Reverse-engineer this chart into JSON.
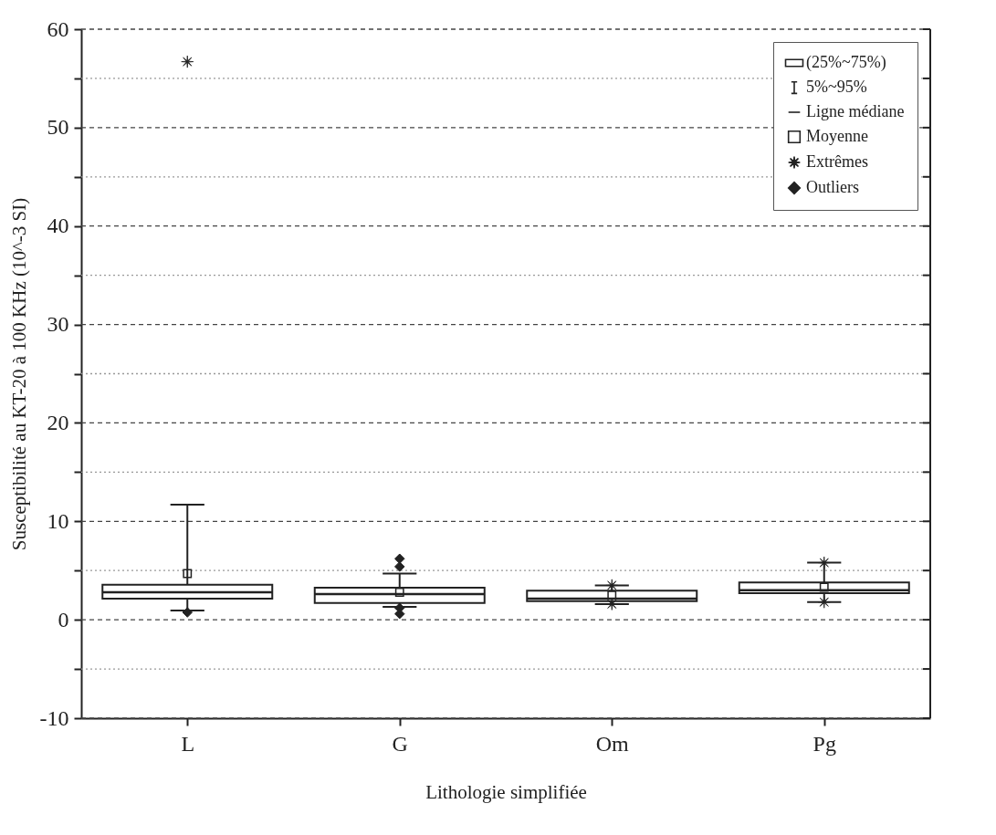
{
  "chart_data": {
    "type": "box",
    "xlabel": "Lithologie simplifiée",
    "ylabel": "Susceptibilité au KT-20 à 100 KHz (10^-3 SI)",
    "categories": [
      "L",
      "G",
      "Om",
      "Pg"
    ],
    "ylim": [
      -10,
      60
    ],
    "yticks": [
      -10,
      {
        "value": -5,
        "label": null
      },
      0,
      {
        "value": 5,
        "label": null
      },
      10,
      {
        "value": 15,
        "label": null
      },
      20,
      {
        "value": 25,
        "label": null
      },
      30,
      {
        "value": 35,
        "label": null
      },
      40,
      {
        "value": 45,
        "label": null
      },
      50,
      {
        "value": 55,
        "label": null
      },
      60
    ],
    "grid": true,
    "legend": "top right",
    "series": [
      {
        "type": "box",
        "name": "(25%~75%)",
        "color": "#222222",
        "boxes": [
          {
            "low": 0.95,
            "q1": 2.15,
            "median": 2.8,
            "q3": 3.55,
            "high": 11.7,
            "mean": 4.7,
            "outliers": [
              0.75
            ]
          },
          {
            "low": 1.3,
            "q1": 1.7,
            "median": 2.6,
            "q3": 3.25,
            "high": 4.7,
            "mean": 2.8,
            "outliers": [
              0.6,
              1.2,
              5.4,
              6.2
            ]
          },
          {
            "low": 1.6,
            "q1": 1.9,
            "median": 2.15,
            "q3": 2.95,
            "high": 3.5,
            "mean": 2.5
          },
          {
            "low": 1.8,
            "q1": 2.7,
            "median": 3.0,
            "q3": 3.8,
            "high": 5.8,
            "mean": 3.3
          }
        ]
      },
      {
        "type": "scatter",
        "name": "Extrêmes",
        "color": "#222222",
        "marker": "star",
        "x": [
          "L",
          "Om",
          "Om",
          "Pg",
          "Pg"
        ],
        "values": [
          56.7,
          3.5,
          1.6,
          5.8,
          1.8
        ]
      }
    ],
    "annotations": [
      "5%~95%",
      "Ligne médiane",
      "Moyenne",
      "Outliers"
    ]
  }
}
